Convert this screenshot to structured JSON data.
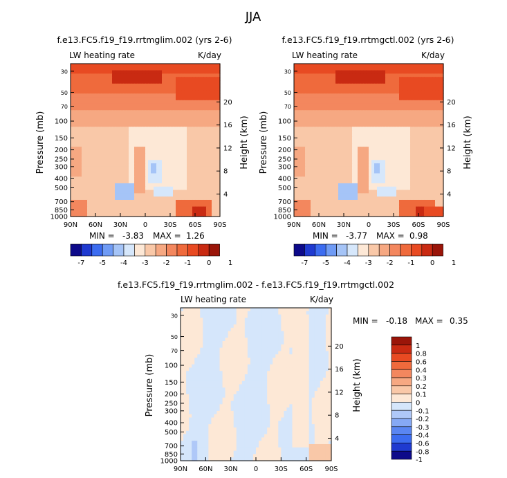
{
  "figure": {
    "season": "JJA",
    "colors": {
      "lw_palette": [
        "#0d0a8a",
        "#1f3ad0",
        "#3c6cf0",
        "#6f9bf5",
        "#a5c4f7",
        "#d6e7fb",
        "#fde8d6",
        "#f9c8a8",
        "#f6a882",
        "#f3875e",
        "#ef6a3c",
        "#e84a22",
        "#c92a12",
        "#9a1509"
      ],
      "diff_palette": [
        "#0d0a8a",
        "#1f3ad0",
        "#3c6cf0",
        "#5a86f2",
        "#86a9f5",
        "#afc8f8",
        "#d5e6fb",
        "#fde8d6",
        "#f9c8a8",
        "#f6a882",
        "#f3875e",
        "#ef6a3c",
        "#e84a22",
        "#c92a12",
        "#9a1509"
      ]
    }
  },
  "chart_data": [
    {
      "type": "heatmap",
      "title": "f.e13.FC5.f19_f19.rrtmglim.002 (yrs 2-6)",
      "left_label": "LW heating rate",
      "right_label": "K/day",
      "ylabel": "Pressure (mb)",
      "ylabel_right": "Height (km)",
      "x_ticks": [
        "90N",
        "60N",
        "30N",
        "0",
        "30S",
        "60S",
        "90S"
      ],
      "y_ticks": [
        "30",
        "50",
        "70",
        "100",
        "150",
        "200",
        "250",
        "300",
        "400",
        "500",
        "700",
        "850",
        "1000"
      ],
      "height_ticks": [
        "20",
        "16",
        "12",
        "8",
        "4"
      ],
      "min_label": "MIN =",
      "min_value": "-3.83",
      "max_label": "MAX =",
      "max_value": "1.26",
      "colorbar_labels": [
        "-7",
        "-5",
        "-4",
        "-3",
        "-2",
        "-1",
        "0",
        "1"
      ]
    },
    {
      "type": "heatmap",
      "title": "f.e13.FC5.f19_f19.rrtmgctl.002 (yrs 2-6)",
      "left_label": "LW heating rate",
      "right_label": "K/day",
      "ylabel": "Pressure (mb)",
      "ylabel_right": "Height (km)",
      "x_ticks": [
        "90N",
        "60N",
        "30N",
        "0",
        "30S",
        "60S",
        "90S"
      ],
      "y_ticks": [
        "30",
        "50",
        "70",
        "100",
        "150",
        "200",
        "250",
        "300",
        "400",
        "500",
        "700",
        "850",
        "1000"
      ],
      "height_ticks": [
        "20",
        "16",
        "12",
        "8",
        "4"
      ],
      "min_label": "MIN =",
      "min_value": "-3.77",
      "max_label": "MAX =",
      "max_value": "0.98",
      "colorbar_labels": [
        "-7",
        "-5",
        "-4",
        "-3",
        "-2",
        "-1",
        "0",
        "1"
      ]
    },
    {
      "type": "heatmap",
      "title": "f.e13.FC5.f19_f19.rrtmglim.002 - f.e13.FC5.f19_f19.rrtmgctl.002",
      "left_label": "LW heating rate",
      "right_label": "K/day",
      "ylabel": "Pressure (mb)",
      "ylabel_right": "Height (km)",
      "x_ticks": [
        "90N",
        "60N",
        "30N",
        "0",
        "30S",
        "60S",
        "90S"
      ],
      "y_ticks": [
        "30",
        "50",
        "70",
        "100",
        "150",
        "200",
        "250",
        "300",
        "400",
        "500",
        "700",
        "850",
        "1000"
      ],
      "height_ticks": [
        "20",
        "16",
        "12",
        "8",
        "4"
      ],
      "min_label": "MIN =",
      "min_value": "-0.18",
      "max_label": "MAX =",
      "max_value": "0.35",
      "colorbar_labels": [
        "1",
        "0.8",
        "0.6",
        "0.4",
        "0.3",
        "0.2",
        "0.1",
        "0",
        "-0.1",
        "-0.2",
        "-0.3",
        "-0.4",
        "-0.6",
        "-0.8",
        "-1"
      ]
    }
  ]
}
